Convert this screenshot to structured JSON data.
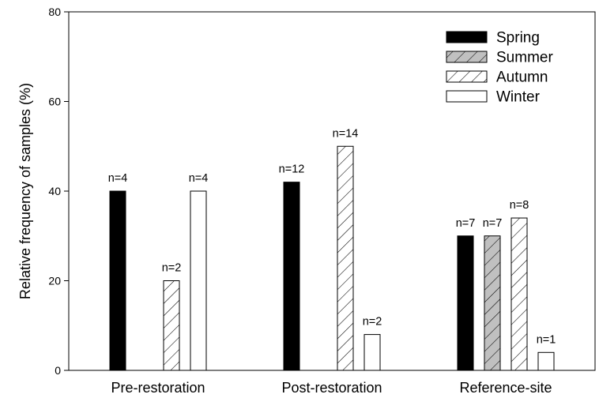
{
  "chart_data": {
    "type": "bar",
    "categories": [
      "Pre-restoration",
      "Post-restoration",
      "Reference-site"
    ],
    "ylabel": "Relative frequency of samples (%)",
    "xlabel": "",
    "ylim": [
      0,
      80
    ],
    "yticks": [
      0,
      20,
      40,
      60,
      80
    ],
    "legend_position": "top-right",
    "series": [
      {
        "name": "Spring",
        "pattern": "solid-black",
        "values": [
          40,
          42,
          30
        ],
        "labels": [
          "n=4",
          "n=12",
          "n=7"
        ]
      },
      {
        "name": "Summer",
        "pattern": "hatch-gray",
        "values": [
          0,
          0,
          30
        ],
        "labels": [
          "",
          "",
          "n=7"
        ]
      },
      {
        "name": "Autumn",
        "pattern": "hatch-white",
        "values": [
          20,
          50,
          34
        ],
        "labels": [
          "n=2",
          "n=14",
          "n=8"
        ]
      },
      {
        "name": "Winter",
        "pattern": "open-white",
        "values": [
          40,
          8,
          4
        ],
        "labels": [
          "n=4",
          "n=2",
          "n=1"
        ]
      }
    ],
    "colors": {
      "spring": "#000000",
      "summer": "#c0c0c0",
      "autumn": "#ffffff",
      "winter": "#ffffff"
    }
  }
}
